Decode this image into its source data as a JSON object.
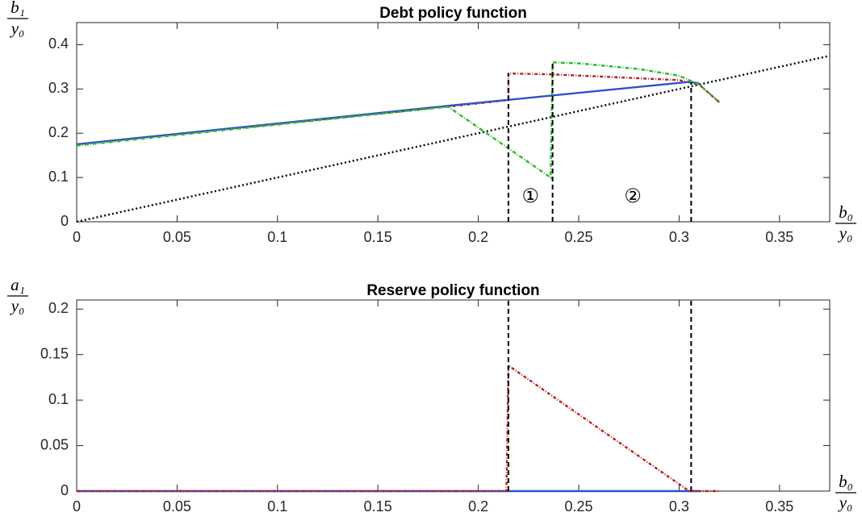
{
  "chart_data": [
    {
      "type": "line",
      "title": "Debt policy function",
      "ylabel": {
        "numerator": "b₁",
        "denominator": "y₀"
      },
      "xlabel": {
        "numerator": "b₀",
        "denominator": "y₀"
      },
      "xlim": [
        0,
        0.375
      ],
      "ylim": [
        0,
        0.45
      ],
      "xticks": [
        0,
        0.05,
        0.1,
        0.15,
        0.2,
        0.25,
        0.3,
        0.35
      ],
      "yticks": [
        0,
        0.1,
        0.2,
        0.3,
        0.4
      ],
      "series": [
        {
          "color": "#000000",
          "dash": "2,3",
          "x": [
            0,
            0.375
          ],
          "values": [
            0,
            0.375
          ]
        },
        {
          "color": "#b22222",
          "dash": "4,2,1,2",
          "x": [
            0,
            0.185,
            0.215,
            0.215,
            0.237,
            0.3,
            0.31,
            0.32
          ],
          "values": [
            0.175,
            0.26,
            0.275,
            0.335,
            0.333,
            0.32,
            0.31,
            0.27
          ]
        },
        {
          "color": "#3050c8",
          "dash": "",
          "x": [
            0,
            0.185,
            0.305,
            0.31
          ],
          "values": [
            0.175,
            0.262,
            0.316,
            0.313
          ]
        },
        {
          "color": "#2eb82e",
          "dash": "5,2,1,2",
          "x": [
            0,
            0.185,
            0.236,
            0.237,
            0.25,
            0.28,
            0.3,
            0.31,
            0.32
          ],
          "values": [
            0.172,
            0.26,
            0.1,
            0.36,
            0.358,
            0.345,
            0.33,
            0.31,
            0.27
          ]
        }
      ],
      "vlines": [
        {
          "x": 0.215,
          "y": 0.335
        },
        {
          "x": 0.237,
          "y": 0.36
        },
        {
          "x": 0.306,
          "y": 0.315
        }
      ],
      "annotations": [
        {
          "text": "①",
          "x": 0.226,
          "y": 0.055
        },
        {
          "text": "②",
          "x": 0.277,
          "y": 0.055
        }
      ]
    },
    {
      "type": "line",
      "title": "Reserve policy function",
      "ylabel": {
        "numerator": "a₁",
        "denominator": "y₀"
      },
      "xlabel": {
        "numerator": "b₀",
        "denominator": "y₀"
      },
      "xlim": [
        0,
        0.375
      ],
      "ylim": [
        0,
        0.21
      ],
      "xticks": [
        0,
        0.05,
        0.1,
        0.15,
        0.2,
        0.25,
        0.3,
        0.35
      ],
      "yticks": [
        0,
        0.05,
        0.1,
        0.15,
        0.2
      ],
      "series": [
        {
          "color": "#3050c8",
          "dash": "",
          "x": [
            0,
            0.31
          ],
          "values": [
            0,
            0
          ]
        },
        {
          "color": "#b22222",
          "dash": "4,2,1,2",
          "x": [
            0,
            0.214,
            0.215,
            0.305,
            0.32
          ],
          "values": [
            0,
            0,
            0.138,
            0,
            0
          ]
        }
      ],
      "vlines": [
        {
          "x": 0.215,
          "y": 0.21
        },
        {
          "x": 0.306,
          "y": 0.21
        }
      ],
      "annotations": []
    }
  ]
}
